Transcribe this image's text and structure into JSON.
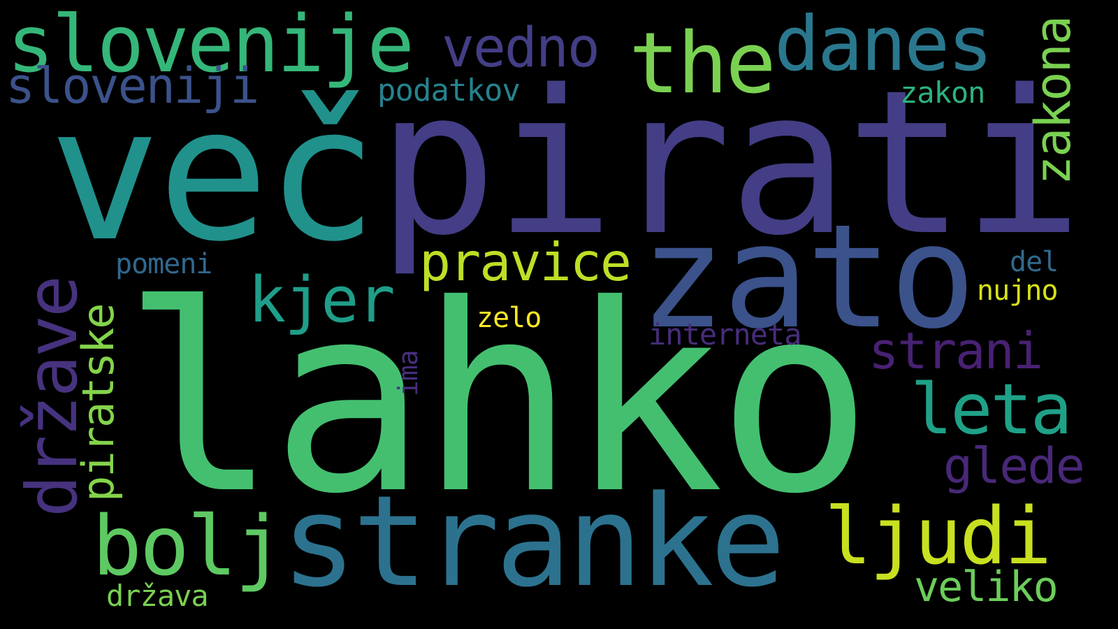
{
  "background_color": "#000000",
  "words": [
    {
      "text": "lahko",
      "color": "#44bf70"
    },
    {
      "text": "pirati",
      "color": "#433e85"
    },
    {
      "text": "več",
      "color": "#21918c"
    },
    {
      "text": "zato",
      "color": "#3b528b"
    },
    {
      "text": "stranke",
      "color": "#2c728e"
    },
    {
      "text": "slovenije",
      "color": "#35b779"
    },
    {
      "text": "the",
      "color": "#7ad151"
    },
    {
      "text": "danes",
      "color": "#2a788e"
    },
    {
      "text": "bolj",
      "color": "#5ec962"
    },
    {
      "text": "ljudi",
      "color": "#c8e020"
    },
    {
      "text": "države",
      "color": "#46327e"
    },
    {
      "text": "leta",
      "color": "#1fa187"
    },
    {
      "text": "kjer",
      "color": "#1f9e89"
    },
    {
      "text": "vedno",
      "color": "#433e85"
    },
    {
      "text": "pravice",
      "color": "#bddf26"
    },
    {
      "text": "strani",
      "color": "#482173"
    },
    {
      "text": "sloveniji",
      "color": "#3b528b"
    },
    {
      "text": "zakona",
      "color": "#7ad151"
    },
    {
      "text": "glede",
      "color": "#482878"
    },
    {
      "text": "piratske",
      "color": "#84d44b"
    },
    {
      "text": "veliko",
      "color": "#6ccd5a"
    },
    {
      "text": "podatkov",
      "color": "#26828e"
    },
    {
      "text": "interneta",
      "color": "#472d7b"
    },
    {
      "text": "zakon",
      "color": "#2db27d"
    },
    {
      "text": "država",
      "color": "#7ad151"
    },
    {
      "text": "nujno",
      "color": "#d8e219"
    },
    {
      "text": "pomeni",
      "color": "#31688e"
    },
    {
      "text": "zelo",
      "color": "#fde725"
    },
    {
      "text": "del",
      "color": "#30698e"
    },
    {
      "text": "ima",
      "color": "#472f7d"
    }
  ]
}
